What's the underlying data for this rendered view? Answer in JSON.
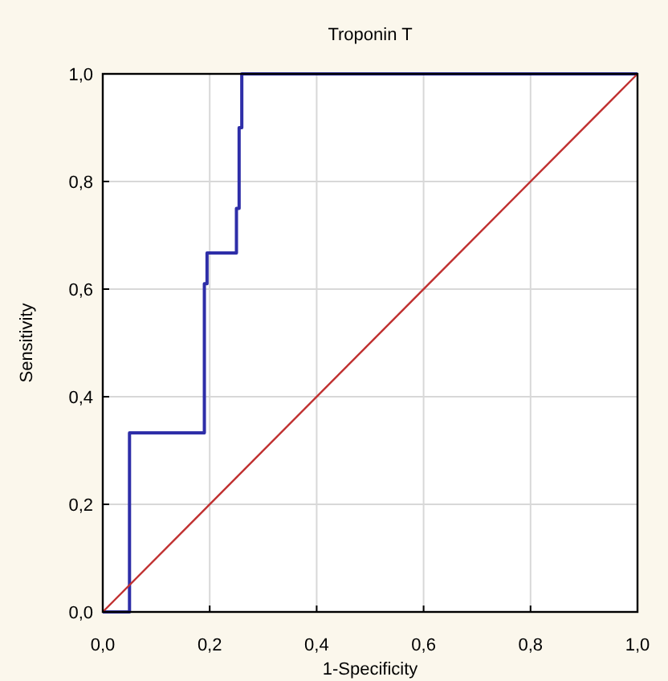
{
  "chart_data": {
    "type": "line",
    "title": "Troponin T",
    "xlabel": "1-Specificity",
    "ylabel": "Sensitivity",
    "xlim": [
      0,
      1
    ],
    "ylim": [
      0,
      1
    ],
    "xticks": [
      {
        "value": 0,
        "label": "0,0"
      },
      {
        "value": 0.2,
        "label": "0,2"
      },
      {
        "value": 0.4,
        "label": "0,4"
      },
      {
        "value": 0.6,
        "label": "0,6"
      },
      {
        "value": 0.8,
        "label": "0,8"
      },
      {
        "value": 1,
        "label": "1,0"
      }
    ],
    "yticks": [
      {
        "value": 0,
        "label": "0,0"
      },
      {
        "value": 0.2,
        "label": "0,2"
      },
      {
        "value": 0.4,
        "label": "0,4"
      },
      {
        "value": 0.6,
        "label": "0,6"
      },
      {
        "value": 0.8,
        "label": "0,8"
      },
      {
        "value": 1,
        "label": "1,0"
      }
    ],
    "grid": true,
    "marker": "none",
    "line_style": "solid",
    "series": [
      {
        "color": "#2e2ea8",
        "x": [
          0,
          0.05,
          0.05,
          0.19,
          0.19,
          0.195,
          0.195,
          0.25,
          0.25,
          0.255,
          0.255,
          0.26,
          0.26,
          1
        ],
        "values": [
          0,
          0,
          0.333,
          0.333,
          0.61,
          0.61,
          0.667,
          0.667,
          0.75,
          0.75,
          0.9,
          0.9,
          1,
          1
        ]
      },
      {
        "color": "#c03030",
        "x": [
          0,
          1
        ],
        "values": [
          0,
          1
        ]
      }
    ]
  }
}
